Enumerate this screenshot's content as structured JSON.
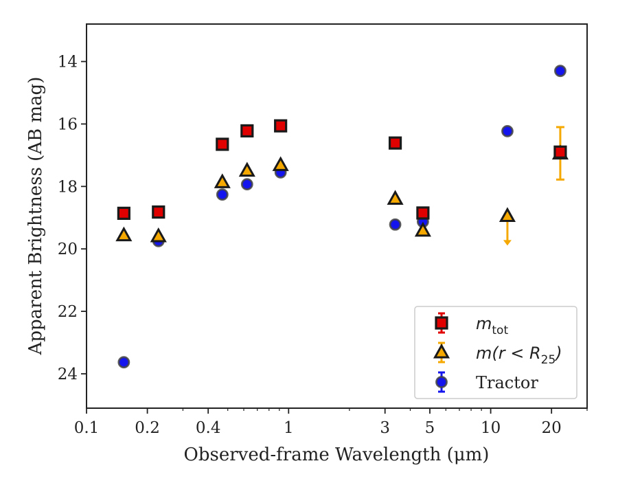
{
  "chart_data": {
    "type": "scatter",
    "xscale": "log",
    "xlim": [
      0.1,
      30
    ],
    "ylim": [
      12.8,
      25.1
    ],
    "y_inverted": true,
    "xlabel": "Observed-frame Wavelength (μm)",
    "ylabel": "Apparent Brightness (AB mag)",
    "xticks": [
      {
        "value": 0.1,
        "label": "0.1"
      },
      {
        "value": 0.2,
        "label": "0.2"
      },
      {
        "value": 0.4,
        "label": "0.4"
      },
      {
        "value": 1,
        "label": "1"
      },
      {
        "value": 3,
        "label": "3"
      },
      {
        "value": 5,
        "label": "5"
      },
      {
        "value": 10,
        "label": "10"
      },
      {
        "value": 20,
        "label": "20"
      }
    ],
    "yticks": [
      {
        "value": 14,
        "label": "14"
      },
      {
        "value": 16,
        "label": "16"
      },
      {
        "value": 18,
        "label": "18"
      },
      {
        "value": 20,
        "label": "20"
      },
      {
        "value": 22,
        "label": "22"
      },
      {
        "value": 24,
        "label": "24"
      }
    ],
    "legend_position": "lower-right",
    "series": [
      {
        "name": "m_tot",
        "legend_main": "m",
        "legend_sub": "tot",
        "marker": "square",
        "color": "#e00000",
        "edge": "#1a1a1a",
        "points": [
          {
            "x": 0.153,
            "y": 18.86
          },
          {
            "x": 0.227,
            "y": 18.82
          },
          {
            "x": 0.47,
            "y": 16.65
          },
          {
            "x": 0.623,
            "y": 16.22
          },
          {
            "x": 0.913,
            "y": 16.06
          },
          {
            "x": 3.37,
            "y": 16.61
          },
          {
            "x": 4.62,
            "y": 18.85
          },
          {
            "x": 22.1,
            "y": 16.9,
            "err": 0.02
          }
        ]
      },
      {
        "name": "m(r < R_25)",
        "legend_main": "m(r < R",
        "legend_sub": "25",
        "legend_tail": ")",
        "marker": "triangle",
        "color": "#f5a800",
        "edge": "#1a1a1a",
        "points": [
          {
            "x": 0.153,
            "y": 19.57
          },
          {
            "x": 0.227,
            "y": 19.6
          },
          {
            "x": 0.47,
            "y": 17.87
          },
          {
            "x": 0.623,
            "y": 17.5
          },
          {
            "x": 0.913,
            "y": 17.32
          },
          {
            "x": 3.37,
            "y": 18.4
          },
          {
            "x": 4.62,
            "y": 19.42
          },
          {
            "x": 12.1,
            "y": 18.95,
            "upper_limit_to": 19.85
          },
          {
            "x": 22.1,
            "y": 16.95,
            "err_low": 16.1,
            "err_high": 17.78
          }
        ]
      },
      {
        "name": "Tractor",
        "legend_main": "Tractor",
        "marker": "circle",
        "color": "#1414ee",
        "edge": "#444444",
        "points": [
          {
            "x": 0.153,
            "y": 23.63
          },
          {
            "x": 0.227,
            "y": 19.75
          },
          {
            "x": 0.47,
            "y": 18.26
          },
          {
            "x": 0.623,
            "y": 17.93
          },
          {
            "x": 0.913,
            "y": 17.55
          },
          {
            "x": 3.37,
            "y": 19.22
          },
          {
            "x": 4.62,
            "y": 19.13
          },
          {
            "x": 12.1,
            "y": 16.23
          },
          {
            "x": 22.1,
            "y": 14.3
          }
        ]
      }
    ]
  }
}
